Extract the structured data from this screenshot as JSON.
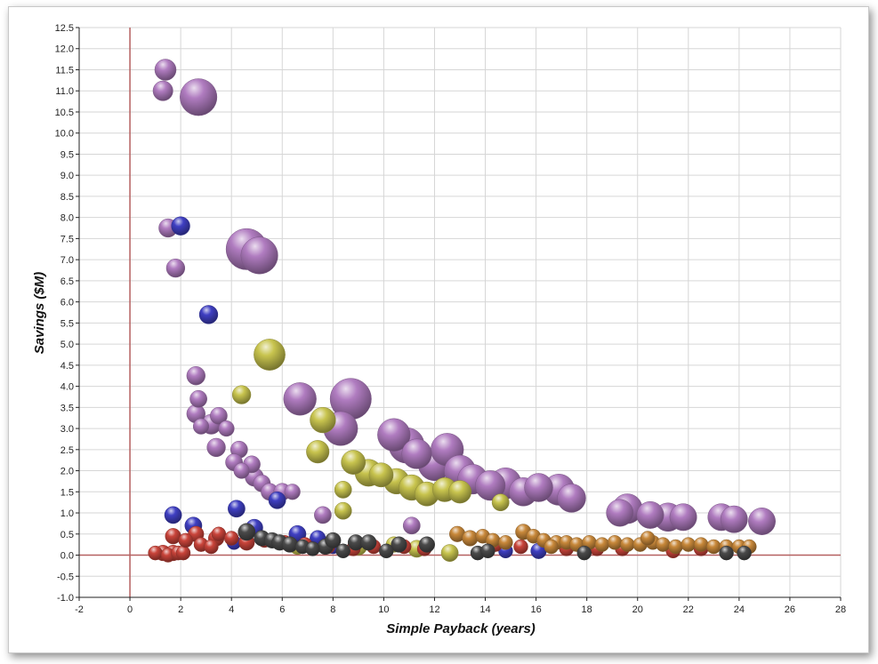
{
  "chart_data": {
    "type": "scatter",
    "bubble": true,
    "title": "",
    "xlabel": "Simple Payback (years)",
    "ylabel": "Savings ($M)",
    "xlim": [
      -2,
      28
    ],
    "ylim": [
      -1.0,
      12.5
    ],
    "x_ticks": [
      -2,
      0,
      2,
      4,
      6,
      8,
      10,
      12,
      14,
      16,
      18,
      20,
      22,
      24,
      26,
      28
    ],
    "y_ticks": [
      -1.0,
      -0.5,
      0.0,
      0.5,
      1.0,
      1.5,
      2.0,
      2.5,
      3.0,
      3.5,
      4.0,
      4.5,
      5.0,
      5.5,
      6.0,
      6.5,
      7.0,
      7.5,
      8.0,
      8.5,
      9.0,
      9.5,
      10.0,
      10.5,
      11.0,
      11.5,
      12.0,
      12.5
    ],
    "grid": true,
    "legend": "none",
    "series": [
      {
        "color": "#b07cc0",
        "points": [
          [
            1.4,
            11.5,
            1.5
          ],
          [
            1.3,
            11.0,
            1.4
          ],
          [
            2.7,
            10.85,
            2.6
          ],
          [
            1.5,
            7.75,
            1.3
          ],
          [
            1.8,
            6.8,
            1.3
          ],
          [
            4.6,
            7.25,
            2.9
          ],
          [
            5.1,
            7.1,
            2.6
          ],
          [
            2.6,
            4.25,
            1.3
          ],
          [
            2.7,
            3.7,
            1.2
          ],
          [
            2.6,
            3.35,
            1.3
          ],
          [
            2.8,
            3.05,
            1.1
          ],
          [
            3.2,
            3.1,
            1.4
          ],
          [
            3.5,
            3.3,
            1.2
          ],
          [
            3.8,
            3.0,
            1.1
          ],
          [
            3.4,
            2.55,
            1.3
          ],
          [
            4.3,
            2.5,
            1.2
          ],
          [
            4.1,
            2.2,
            1.2
          ],
          [
            4.4,
            2.0,
            1.1
          ],
          [
            4.8,
            2.15,
            1.2
          ],
          [
            4.9,
            1.85,
            1.3
          ],
          [
            5.2,
            1.7,
            1.2
          ],
          [
            5.5,
            1.5,
            1.2
          ],
          [
            6.0,
            1.5,
            1.2
          ],
          [
            6.4,
            1.5,
            1.1
          ],
          [
            6.7,
            3.7,
            2.3
          ],
          [
            8.7,
            3.7,
            2.9
          ],
          [
            8.3,
            3.0,
            2.4
          ],
          [
            7.6,
            0.95,
            1.2
          ],
          [
            10.4,
            2.85,
            2.3
          ],
          [
            10.9,
            2.6,
            2.5
          ],
          [
            11.3,
            2.4,
            2.1
          ],
          [
            12.0,
            2.15,
            2.3
          ],
          [
            12.5,
            2.5,
            2.3
          ],
          [
            13.0,
            2.0,
            2.2
          ],
          [
            13.5,
            1.8,
            2.1
          ],
          [
            14.2,
            1.65,
            2.1
          ],
          [
            14.8,
            1.7,
            2.2
          ],
          [
            15.5,
            1.5,
            2.0
          ],
          [
            16.1,
            1.6,
            2.0
          ],
          [
            16.9,
            1.55,
            2.2
          ],
          [
            17.4,
            1.35,
            2.0
          ],
          [
            19.3,
            1.0,
            1.9
          ],
          [
            19.6,
            1.1,
            2.1
          ],
          [
            20.5,
            0.95,
            1.9
          ],
          [
            21.2,
            0.9,
            2.0
          ],
          [
            21.8,
            0.9,
            1.9
          ],
          [
            23.3,
            0.9,
            1.9
          ],
          [
            23.8,
            0.85,
            1.9
          ],
          [
            24.9,
            0.8,
            1.9
          ],
          [
            11.1,
            0.7,
            1.2
          ]
        ]
      },
      {
        "color": "#c8c44e",
        "points": [
          [
            5.5,
            4.75,
            2.2
          ],
          [
            4.4,
            3.8,
            1.3
          ],
          [
            7.6,
            3.2,
            1.8
          ],
          [
            7.4,
            2.45,
            1.6
          ],
          [
            8.8,
            2.2,
            1.7
          ],
          [
            9.4,
            1.95,
            1.9
          ],
          [
            9.9,
            1.9,
            1.7
          ],
          [
            10.5,
            1.75,
            1.8
          ],
          [
            11.1,
            1.6,
            1.8
          ],
          [
            11.7,
            1.45,
            1.7
          ],
          [
            12.4,
            1.55,
            1.7
          ],
          [
            13.0,
            1.5,
            1.6
          ],
          [
            8.4,
            1.55,
            1.2
          ],
          [
            8.4,
            1.05,
            1.2
          ],
          [
            9.0,
            0.2,
            1.2
          ],
          [
            11.3,
            0.15,
            1.2
          ],
          [
            12.6,
            0.05,
            1.2
          ],
          [
            14.6,
            1.25,
            1.2
          ],
          [
            6.6,
            0.2,
            1.1
          ],
          [
            10.4,
            0.25,
            1.1
          ]
        ]
      },
      {
        "color": "#3f3fc2",
        "points": [
          [
            2.0,
            7.8,
            1.3
          ],
          [
            3.1,
            5.7,
            1.3
          ],
          [
            1.7,
            0.95,
            1.2
          ],
          [
            4.2,
            1.1,
            1.2
          ],
          [
            5.8,
            1.3,
            1.2
          ],
          [
            2.5,
            0.7,
            1.2
          ],
          [
            4.9,
            0.65,
            1.2
          ],
          [
            6.6,
            0.5,
            1.2
          ],
          [
            7.4,
            0.4,
            1.1
          ],
          [
            14.8,
            0.1,
            1.0
          ],
          [
            16.1,
            0.1,
            1.1
          ],
          [
            4.1,
            0.3,
            1.0
          ],
          [
            8.0,
            0.2,
            1.0
          ]
        ]
      },
      {
        "color": "#c9443a",
        "points": [
          [
            1.0,
            0.05,
            1.0
          ],
          [
            1.3,
            0.05,
            1.1
          ],
          [
            1.5,
            0.0,
            1.0
          ],
          [
            1.7,
            0.05,
            1.1
          ],
          [
            1.9,
            0.05,
            1.0
          ],
          [
            2.1,
            0.05,
            1.0
          ],
          [
            1.7,
            0.45,
            1.1
          ],
          [
            2.2,
            0.35,
            1.0
          ],
          [
            2.6,
            0.5,
            1.1
          ],
          [
            2.8,
            0.25,
            1.0
          ],
          [
            3.2,
            0.2,
            1.0
          ],
          [
            3.4,
            0.4,
            1.1
          ],
          [
            3.5,
            0.5,
            1.0
          ],
          [
            4.0,
            0.4,
            1.0
          ],
          [
            4.6,
            0.3,
            1.1
          ],
          [
            5.3,
            0.35,
            1.0
          ],
          [
            6.1,
            0.3,
            1.0
          ],
          [
            6.9,
            0.25,
            1.0
          ],
          [
            7.8,
            0.2,
            1.0
          ],
          [
            8.8,
            0.15,
            1.0
          ],
          [
            9.6,
            0.2,
            1.0
          ],
          [
            10.8,
            0.2,
            1.0
          ],
          [
            11.6,
            0.15,
            1.0
          ],
          [
            14.4,
            0.25,
            1.0
          ],
          [
            15.4,
            0.2,
            1.0
          ],
          [
            17.2,
            0.15,
            1.0
          ],
          [
            18.4,
            0.15,
            1.0
          ],
          [
            19.4,
            0.15,
            1.0
          ],
          [
            21.4,
            0.1,
            1.0
          ],
          [
            22.5,
            0.15,
            1.0
          ]
        ]
      },
      {
        "color": "#c8883a",
        "points": [
          [
            12.9,
            0.5,
            1.1
          ],
          [
            13.4,
            0.4,
            1.1
          ],
          [
            13.9,
            0.45,
            1.0
          ],
          [
            14.3,
            0.35,
            1.0
          ],
          [
            14.8,
            0.3,
            1.0
          ],
          [
            15.5,
            0.55,
            1.1
          ],
          [
            15.9,
            0.45,
            1.0
          ],
          [
            16.3,
            0.35,
            1.0
          ],
          [
            16.8,
            0.3,
            1.0
          ],
          [
            17.2,
            0.3,
            1.0
          ],
          [
            17.6,
            0.25,
            1.0
          ],
          [
            18.1,
            0.3,
            1.0
          ],
          [
            18.6,
            0.25,
            1.0
          ],
          [
            19.1,
            0.3,
            1.0
          ],
          [
            19.6,
            0.25,
            1.0
          ],
          [
            20.1,
            0.25,
            1.0
          ],
          [
            20.6,
            0.3,
            1.0
          ],
          [
            21.0,
            0.25,
            1.0
          ],
          [
            21.5,
            0.2,
            1.0
          ],
          [
            22.0,
            0.25,
            1.0
          ],
          [
            22.5,
            0.25,
            1.0
          ],
          [
            23.0,
            0.2,
            1.0
          ],
          [
            23.5,
            0.2,
            1.0
          ],
          [
            24.0,
            0.2,
            1.0
          ],
          [
            24.4,
            0.2,
            1.0
          ],
          [
            16.6,
            0.2,
            1.0
          ],
          [
            20.4,
            0.4,
            1.0
          ]
        ]
      },
      {
        "color": "#4a4a4a",
        "points": [
          [
            4.6,
            0.55,
            1.2
          ],
          [
            5.2,
            0.4,
            1.1
          ],
          [
            5.6,
            0.35,
            1.1
          ],
          [
            5.9,
            0.3,
            1.1
          ],
          [
            6.3,
            0.25,
            1.1
          ],
          [
            6.8,
            0.2,
            1.0
          ],
          [
            7.2,
            0.15,
            1.0
          ],
          [
            7.7,
            0.2,
            1.1
          ],
          [
            8.0,
            0.35,
            1.1
          ],
          [
            8.4,
            0.1,
            1.0
          ],
          [
            8.9,
            0.3,
            1.1
          ],
          [
            9.4,
            0.3,
            1.1
          ],
          [
            10.1,
            0.1,
            1.0
          ],
          [
            10.6,
            0.25,
            1.1
          ],
          [
            11.7,
            0.25,
            1.1
          ],
          [
            13.7,
            0.05,
            1.0
          ],
          [
            14.1,
            0.1,
            1.0
          ],
          [
            17.9,
            0.05,
            1.0
          ],
          [
            23.5,
            0.05,
            1.0
          ],
          [
            24.2,
            0.05,
            1.0
          ]
        ]
      }
    ]
  }
}
